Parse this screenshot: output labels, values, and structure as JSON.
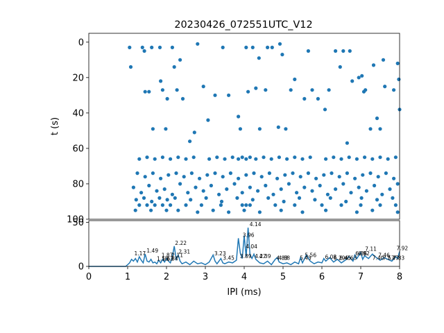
{
  "chart_data": [
    {
      "panel": "raster",
      "type": "scatter",
      "title": "20230426_072551UTC_V12",
      "xlabel": "",
      "ylabel": "t (s)",
      "xlim": [
        0,
        8
      ],
      "ylim": [
        100,
        -5
      ],
      "y_inverted": true,
      "yticks": [
        "0",
        "20",
        "40",
        "60",
        "80",
        "100"
      ],
      "marker_color": "#1f77b4",
      "points": [
        [
          1.05,
          3
        ],
        [
          1.08,
          14
        ],
        [
          1.38,
          3
        ],
        [
          1.43,
          5
        ],
        [
          1.45,
          28
        ],
        [
          1.55,
          28
        ],
        [
          1.62,
          3
        ],
        [
          1.65,
          49
        ],
        [
          1.83,
          3
        ],
        [
          1.85,
          22
        ],
        [
          1.9,
          27
        ],
        [
          1.98,
          49
        ],
        [
          2.02,
          32
        ],
        [
          2.15,
          3
        ],
        [
          2.2,
          14
        ],
        [
          2.27,
          27
        ],
        [
          2.35,
          10
        ],
        [
          2.42,
          32
        ],
        [
          2.6,
          56
        ],
        [
          2.72,
          51
        ],
        [
          2.8,
          1
        ],
        [
          2.95,
          25
        ],
        [
          3.07,
          44
        ],
        [
          3.25,
          30
        ],
        [
          3.45,
          3
        ],
        [
          3.6,
          30
        ],
        [
          3.85,
          42
        ],
        [
          3.9,
          49
        ],
        [
          4.05,
          3
        ],
        [
          4.1,
          28
        ],
        [
          4.22,
          3
        ],
        [
          4.3,
          26
        ],
        [
          4.38,
          9
        ],
        [
          4.4,
          49
        ],
        [
          4.55,
          27
        ],
        [
          4.6,
          3
        ],
        [
          4.72,
          3
        ],
        [
          4.88,
          48
        ],
        [
          4.92,
          1
        ],
        [
          4.98,
          7
        ],
        [
          5.07,
          49
        ],
        [
          5.2,
          27
        ],
        [
          5.3,
          21
        ],
        [
          5.55,
          32
        ],
        [
          5.65,
          5
        ],
        [
          5.75,
          27
        ],
        [
          5.9,
          32
        ],
        [
          6.08,
          38
        ],
        [
          6.18,
          27
        ],
        [
          6.35,
          5
        ],
        [
          6.47,
          14
        ],
        [
          6.55,
          5
        ],
        [
          6.65,
          57
        ],
        [
          6.72,
          5
        ],
        [
          6.78,
          22
        ],
        [
          6.95,
          20
        ],
        [
          7.03,
          19
        ],
        [
          7.08,
          28
        ],
        [
          7.12,
          27
        ],
        [
          7.25,
          49
        ],
        [
          7.33,
          13
        ],
        [
          7.42,
          43
        ],
        [
          7.5,
          49
        ],
        [
          7.58,
          10
        ],
        [
          7.62,
          25
        ],
        [
          7.85,
          27
        ],
        [
          7.95,
          12
        ],
        [
          7.98,
          21
        ],
        [
          8.0,
          38
        ],
        [
          1.3,
          66
        ],
        [
          1.5,
          65
        ],
        [
          1.7,
          66
        ],
        [
          1.9,
          65
        ],
        [
          2.1,
          66
        ],
        [
          2.3,
          65
        ],
        [
          2.5,
          66
        ],
        [
          2.7,
          65
        ],
        [
          3.1,
          66
        ],
        [
          3.3,
          65
        ],
        [
          3.5,
          66
        ],
        [
          3.7,
          65
        ],
        [
          3.85,
          66
        ],
        [
          3.95,
          65
        ],
        [
          4.05,
          66
        ],
        [
          4.15,
          65
        ],
        [
          4.3,
          66
        ],
        [
          4.5,
          65
        ],
        [
          4.7,
          66
        ],
        [
          4.9,
          65
        ],
        [
          5.1,
          66
        ],
        [
          5.3,
          65
        ],
        [
          5.5,
          66
        ],
        [
          5.7,
          65
        ],
        [
          6.1,
          66
        ],
        [
          6.3,
          65
        ],
        [
          6.5,
          66
        ],
        [
          6.7,
          65
        ],
        [
          6.9,
          66
        ],
        [
          7.1,
          65
        ],
        [
          7.3,
          66
        ],
        [
          7.5,
          65
        ],
        [
          7.7,
          66
        ],
        [
          7.9,
          65
        ],
        [
          1.25,
          74
        ],
        [
          1.45,
          76
        ],
        [
          1.65,
          74
        ],
        [
          1.85,
          77
        ],
        [
          2.05,
          75
        ],
        [
          2.25,
          74
        ],
        [
          2.45,
          76
        ],
        [
          2.65,
          74
        ],
        [
          2.85,
          77
        ],
        [
          3.05,
          75
        ],
        [
          3.25,
          74
        ],
        [
          3.45,
          76
        ],
        [
          3.65,
          74
        ],
        [
          3.85,
          77
        ],
        [
          4.05,
          75
        ],
        [
          4.25,
          74
        ],
        [
          4.45,
          76
        ],
        [
          4.65,
          74
        ],
        [
          4.85,
          77
        ],
        [
          5.05,
          75
        ],
        [
          5.25,
          74
        ],
        [
          5.45,
          76
        ],
        [
          5.65,
          74
        ],
        [
          5.85,
          77
        ],
        [
          6.05,
          75
        ],
        [
          6.25,
          74
        ],
        [
          6.45,
          76
        ],
        [
          6.65,
          74
        ],
        [
          6.85,
          77
        ],
        [
          7.05,
          75
        ],
        [
          7.25,
          74
        ],
        [
          7.45,
          76
        ],
        [
          7.65,
          74
        ],
        [
          7.85,
          77
        ],
        [
          1.15,
          82
        ],
        [
          1.35,
          85
        ],
        [
          1.55,
          81
        ],
        [
          1.75,
          84
        ],
        [
          1.95,
          83
        ],
        [
          2.15,
          86
        ],
        [
          2.35,
          80
        ],
        [
          2.55,
          85
        ],
        [
          2.75,
          82
        ],
        [
          2.95,
          84
        ],
        [
          3.15,
          81
        ],
        [
          3.35,
          86
        ],
        [
          3.55,
          83
        ],
        [
          3.75,
          80
        ],
        [
          3.95,
          85
        ],
        [
          4.15,
          82
        ],
        [
          4.35,
          84
        ],
        [
          4.55,
          81
        ],
        [
          4.75,
          86
        ],
        [
          4.95,
          83
        ],
        [
          5.15,
          80
        ],
        [
          5.35,
          85
        ],
        [
          5.55,
          82
        ],
        [
          5.75,
          84
        ],
        [
          5.95,
          81
        ],
        [
          6.15,
          86
        ],
        [
          6.35,
          83
        ],
        [
          6.55,
          80
        ],
        [
          6.75,
          85
        ],
        [
          6.95,
          82
        ],
        [
          7.15,
          84
        ],
        [
          7.35,
          81
        ],
        [
          7.55,
          86
        ],
        [
          7.75,
          83
        ],
        [
          7.95,
          80
        ],
        [
          1.22,
          89
        ],
        [
          1.42,
          88
        ],
        [
          1.62,
          90
        ],
        [
          1.82,
          88
        ],
        [
          2.02,
          89
        ],
        [
          2.22,
          88
        ],
        [
          2.62,
          89
        ],
        [
          3.02,
          88
        ],
        [
          3.42,
          90
        ],
        [
          3.82,
          88
        ],
        [
          4.22,
          89
        ],
        [
          4.62,
          88
        ],
        [
          5.02,
          90
        ],
        [
          5.42,
          88
        ],
        [
          5.82,
          89
        ],
        [
          6.22,
          88
        ],
        [
          6.62,
          90
        ],
        [
          7.02,
          88
        ],
        [
          7.42,
          89
        ],
        [
          7.82,
          88
        ],
        [
          1.3,
          92
        ],
        [
          1.5,
          92
        ],
        [
          1.7,
          92
        ],
        [
          1.9,
          92
        ],
        [
          2.1,
          92
        ],
        [
          2.5,
          92
        ],
        [
          2.9,
          92
        ],
        [
          3.4,
          92
        ],
        [
          3.95,
          92
        ],
        [
          4.05,
          92
        ],
        [
          4.15,
          92
        ],
        [
          4.8,
          92
        ],
        [
          5.3,
          92
        ],
        [
          6.0,
          92
        ],
        [
          6.5,
          92
        ],
        [
          7.0,
          92
        ],
        [
          7.5,
          92
        ],
        [
          7.9,
          92
        ],
        [
          1.2,
          95
        ],
        [
          1.6,
          95
        ],
        [
          2.0,
          95
        ],
        [
          2.3,
          95
        ],
        [
          2.8,
          96
        ],
        [
          3.2,
          95
        ],
        [
          3.6,
          96
        ],
        [
          4.0,
          95
        ],
        [
          4.4,
          96
        ],
        [
          4.95,
          95
        ],
        [
          5.5,
          96
        ],
        [
          6.1,
          95
        ],
        [
          6.9,
          96
        ],
        [
          7.3,
          95
        ],
        [
          7.95,
          96
        ]
      ]
    },
    {
      "panel": "histogram",
      "type": "line",
      "title": "",
      "xlabel": "IPI (ms)",
      "ylabel": "",
      "xlim": [
        0,
        8
      ],
      "ylim": [
        0,
        52
      ],
      "xticks": [
        "0",
        "1",
        "2",
        "3",
        "4",
        "5",
        "6",
        "7",
        "8"
      ],
      "yticks": [
        "0",
        "50"
      ],
      "line_color": "#1f77b4",
      "x": [
        0,
        0.95,
        1.0,
        1.05,
        1.1,
        1.15,
        1.2,
        1.25,
        1.3,
        1.35,
        1.4,
        1.45,
        1.5,
        1.55,
        1.6,
        1.65,
        1.7,
        1.75,
        1.8,
        1.85,
        1.9,
        1.95,
        2.0,
        2.05,
        2.1,
        2.15,
        2.2,
        2.25,
        2.3,
        2.35,
        2.4,
        2.5,
        2.6,
        2.7,
        2.8,
        2.9,
        3.0,
        3.1,
        3.2,
        3.25,
        3.3,
        3.4,
        3.45,
        3.5,
        3.6,
        3.7,
        3.8,
        3.85,
        3.9,
        3.95,
        4.0,
        4.05,
        4.1,
        4.15,
        4.2,
        4.25,
        4.3,
        4.4,
        4.5,
        4.6,
        4.7,
        4.8,
        4.85,
        4.9,
        5.0,
        5.1,
        5.2,
        5.3,
        5.4,
        5.45,
        5.5,
        5.6,
        5.7,
        5.8,
        5.9,
        6.0,
        6.05,
        6.1,
        6.2,
        6.3,
        6.4,
        6.5,
        6.6,
        6.7,
        6.8,
        6.85,
        6.9,
        7.0,
        7.05,
        7.1,
        7.2,
        7.3,
        7.4,
        7.5,
        7.6,
        7.7,
        7.8,
        7.9,
        7.95,
        8.0
      ],
      "y": [
        0,
        0,
        2,
        4,
        8,
        6,
        9,
        5,
        11,
        7,
        4,
        14,
        6,
        5,
        8,
        4,
        5,
        3,
        7,
        4,
        8,
        5,
        9,
        6,
        4,
        11,
        23,
        8,
        13,
        6,
        3,
        5,
        2,
        6,
        3,
        4,
        2,
        5,
        13,
        6,
        3,
        9,
        4,
        3,
        5,
        4,
        7,
        32,
        15,
        9,
        35,
        11,
        44,
        13,
        9,
        14,
        8,
        4,
        3,
        6,
        2,
        8,
        10,
        5,
        3,
        4,
        2,
        5,
        3,
        10,
        4,
        13,
        6,
        3,
        5,
        4,
        9,
        6,
        10,
        5,
        8,
        4,
        7,
        11,
        6,
        13,
        9,
        16,
        8,
        12,
        9,
        14,
        10,
        7,
        10,
        8,
        6,
        11,
        9,
        17
      ],
      "peak_labels": [
        {
          "x": 1.17,
          "y": 11,
          "text": "1.17"
        },
        {
          "x": 1.49,
          "y": 14,
          "text": "1.49"
        },
        {
          "x": 1.75,
          "y": 5,
          "text": "1.56"
        },
        {
          "x": 1.88,
          "y": 5,
          "text": "1.63"
        },
        {
          "x": 2.0,
          "y": 5,
          "text": "1.84"
        },
        {
          "x": 1.87,
          "y": 9,
          "text": "1.87"
        },
        {
          "x": 2.22,
          "y": 23,
          "text": "2.22"
        },
        {
          "x": 2.13,
          "y": 9,
          "text": "2.11"
        },
        {
          "x": 2.31,
          "y": 13,
          "text": "2.31"
        },
        {
          "x": 3.23,
          "y": 11,
          "text": "3.23"
        },
        {
          "x": 3.45,
          "y": 6,
          "text": "3.45"
        },
        {
          "x": 3.89,
          "y": 8,
          "text": "3.89"
        },
        {
          "x": 3.96,
          "y": 32,
          "text": "3.96"
        },
        {
          "x": 4.04,
          "y": 19,
          "text": "4.04"
        },
        {
          "x": 4.14,
          "y": 44,
          "text": "4.14"
        },
        {
          "x": 4.27,
          "y": 8,
          "text": "4.27"
        },
        {
          "x": 4.39,
          "y": 8,
          "text": "4.39"
        },
        {
          "x": 4.83,
          "y": 6,
          "text": "4.83"
        },
        {
          "x": 4.88,
          "y": 6,
          "text": "4.88"
        },
        {
          "x": 5.43,
          "y": 6,
          "text": "5.43"
        },
        {
          "x": 5.56,
          "y": 9,
          "text": "5.56"
        },
        {
          "x": 6.08,
          "y": 7,
          "text": "6.08"
        },
        {
          "x": 6.3,
          "y": 6,
          "text": "6.29"
        },
        {
          "x": 6.45,
          "y": 6,
          "text": "6.45"
        },
        {
          "x": 6.6,
          "y": 6,
          "text": "6.63"
        },
        {
          "x": 6.86,
          "y": 11,
          "text": "6.86"
        },
        {
          "x": 6.93,
          "y": 11,
          "text": "6.92"
        },
        {
          "x": 7.11,
          "y": 16,
          "text": "7.11"
        },
        {
          "x": 7.3,
          "y": 6,
          "text": "7.40"
        },
        {
          "x": 7.45,
          "y": 9,
          "text": "7.46"
        },
        {
          "x": 7.57,
          "y": 6,
          "text": "7.57"
        },
        {
          "x": 7.68,
          "y": 6,
          "text": "7.77"
        },
        {
          "x": 7.83,
          "y": 6,
          "text": "7.83"
        },
        {
          "x": 7.92,
          "y": 17,
          "text": "7.92"
        }
      ]
    }
  ]
}
